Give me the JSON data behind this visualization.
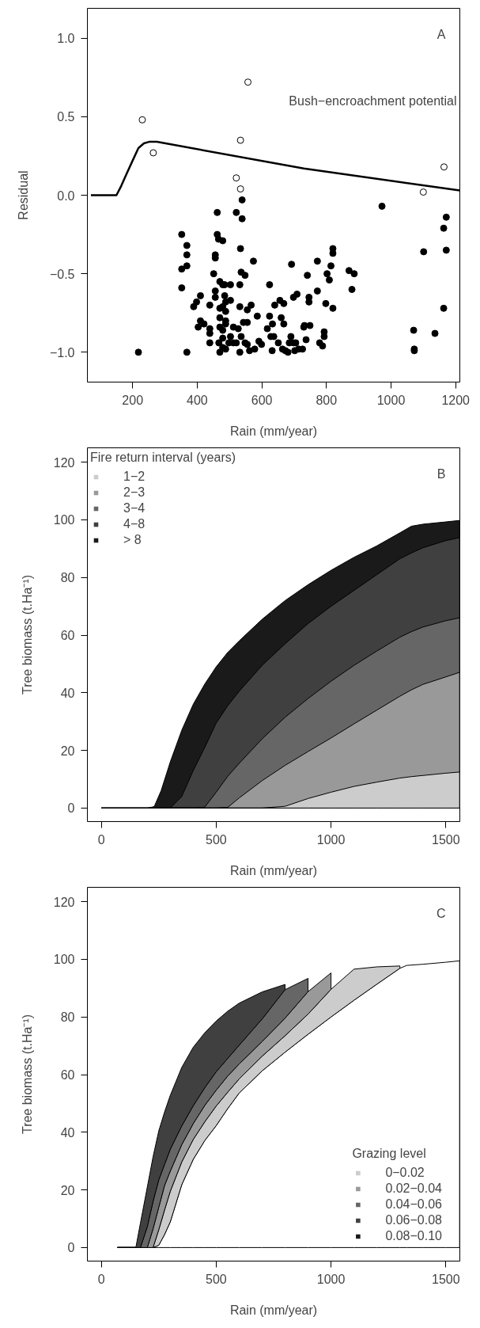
{
  "chart_data": [
    {
      "type": "scatter",
      "xlabel": "Rain (mm/year)",
      "ylabel": "Residual",
      "xlim": [
        60,
        1213
      ],
      "ylim": [
        -1.19,
        1.19
      ],
      "xticks": [
        200,
        400,
        600,
        800,
        1000,
        1200
      ],
      "yticks": [
        {
          "value": -1,
          "label": "−1.0"
        },
        {
          "value": -0.5,
          "label": "−0.5"
        },
        {
          "value": 0,
          "label": "0.0"
        },
        {
          "value": 0.5,
          "label": "0.5"
        },
        {
          "value": 1,
          "label": "1.0"
        }
      ],
      "marker": "circle",
      "annotations": [
        "A",
        "Bush−encroachment potential"
      ],
      "series": [
        {
          "type": "scatter",
          "color": "#000000",
          "x": [
            218,
            368,
            352,
            368,
            368,
            368,
            352,
            352,
            389,
            398,
            410,
            403,
            410,
            421,
            439,
            439,
            439,
            439,
            451,
            456,
            456,
            462,
            462,
            466,
            479,
            456,
            456,
            470,
            479,
            485,
            503,
            485,
            488,
            470,
            479,
            488,
            470,
            488,
            470,
            479,
            488,
            467,
            470,
            479,
            488,
            479,
            498,
            503,
            512,
            503,
            512,
            521,
            521,
            539,
            539,
            534,
            536,
            548,
            532,
            532,
            532,
            527,
            536,
            543,
            555,
            555,
            567,
            574,
            586,
            548,
            555,
            562,
            578,
            591,
            599,
            617,
            624,
            624,
            628,
            633,
            637,
            632,
            640,
            656,
            660,
            668,
            668,
            651,
            664,
            673,
            681,
            685,
            690,
            692,
            698,
            709,
            698,
            705,
            714,
            702,
            726,
            730,
            732,
            737,
            741,
            746,
            746,
            749,
            772,
            772,
            779,
            788,
            793,
            793,
            798,
            802,
            809,
            814,
            820,
            820,
            820,
            870,
            886,
            879,
            972,
            1070,
            1072,
            1072,
            1101,
            1136,
            1163,
            1171,
            1171,
            1163
          ],
          "values": [
            -1.0,
            -1.0,
            -0.25,
            -0.32,
            -0.38,
            -0.45,
            -0.47,
            -0.59,
            -0.71,
            -0.68,
            -0.64,
            -0.84,
            -0.8,
            -0.82,
            -0.7,
            -0.85,
            -0.88,
            -0.94,
            -0.5,
            -0.38,
            -0.4,
            -0.11,
            -0.25,
            -0.28,
            -0.29,
            -0.61,
            -0.65,
            -0.55,
            -0.57,
            -0.57,
            -0.57,
            -0.64,
            -0.68,
            -0.72,
            -0.71,
            -0.74,
            -0.78,
            -0.8,
            -0.84,
            -0.86,
            -0.82,
            -0.94,
            -1.0,
            -0.97,
            -0.98,
            -0.91,
            -0.94,
            -0.9,
            -0.84,
            -0.67,
            -0.94,
            -0.94,
            -0.11,
            -0.15,
            -0.03,
            -0.34,
            -0.49,
            -0.51,
            -0.57,
            -0.71,
            -1.0,
            -0.85,
            -0.9,
            -0.81,
            -0.81,
            -0.73,
            -0.7,
            -0.42,
            -0.77,
            -0.94,
            -0.95,
            -0.99,
            -0.98,
            -0.93,
            -0.95,
            -0.85,
            -0.57,
            -0.77,
            -0.9,
            -0.82,
            -0.9,
            -0.99,
            -0.7,
            -0.67,
            -0.78,
            -0.69,
            -0.82,
            -0.94,
            -0.98,
            -0.99,
            -1.0,
            -0.94,
            -0.9,
            -0.44,
            -0.65,
            -0.63,
            -0.94,
            -0.94,
            -0.98,
            -0.99,
            -0.98,
            -0.84,
            -0.83,
            -0.92,
            -0.51,
            -0.65,
            -0.68,
            -0.83,
            -0.42,
            -0.61,
            -0.94,
            -0.96,
            -0.9,
            -0.87,
            -0.69,
            -0.5,
            -0.54,
            -0.45,
            -0.34,
            -0.37,
            -0.72,
            -0.48,
            -0.5,
            -0.6,
            -0.07,
            -0.86,
            -0.98,
            -0.99,
            -0.36,
            -0.88,
            -0.21,
            -0.14,
            -0.35,
            -0.72
          ]
        },
        {
          "type": "scatter",
          "color": "#ffffff",
          "x": [
            230,
            264,
            557,
            534,
            521,
            534,
            1100,
            1164
          ],
          "values": [
            0.48,
            0.27,
            0.72,
            0.35,
            0.11,
            0.04,
            0.02,
            0.18
          ]
        },
        {
          "type": "line",
          "marker": "none",
          "color": "#000000",
          "x": [
            71,
            150,
            165,
            180,
            200,
            218,
            235,
            251,
            275,
            730,
            1213
          ],
          "values": [
            0,
            0,
            0.06,
            0.13,
            0.22,
            0.3,
            0.33,
            0.34,
            0.34,
            0.17,
            0.03
          ]
        }
      ]
    },
    {
      "type": "area",
      "xlabel": "Rain (mm/year)",
      "ylabel": "Tree biomass (t.Ha⁻¹)",
      "xlim": [
        -61,
        1561
      ],
      "ylim": [
        -4.7,
        125
      ],
      "xticks": [
        0,
        500,
        1000,
        1500
      ],
      "yticks": [
        0,
        20,
        40,
        60,
        80,
        100,
        120
      ],
      "legend": "top left",
      "legend_title": "Fire return interval (years)",
      "annotations": [
        "B"
      ],
      "x": [
        0,
        70,
        200,
        230,
        260,
        300,
        350,
        400,
        450,
        500,
        550,
        600,
        700,
        800,
        900,
        1000,
        1100,
        1200,
        1300,
        1350,
        1400,
        1500,
        1560
      ],
      "series": [
        {
          "name": "1−2",
          "color": "#cccccc",
          "values": [
            0,
            0,
            0,
            0,
            0,
            0,
            0,
            0,
            0,
            0,
            0,
            0,
            0,
            0.6,
            3.3,
            5.5,
            7.5,
            9,
            10.4,
            10.9,
            11.3,
            12.1,
            12.5
          ]
        },
        {
          "name": "2−3",
          "color": "#999999",
          "values": [
            0,
            0,
            0,
            0,
            0,
            0,
            0,
            0,
            0,
            0,
            0.2,
            3.5,
            9.5,
            14.8,
            19.6,
            24.3,
            29.2,
            34,
            38.8,
            41,
            42.9,
            45.5,
            47.1
          ]
        },
        {
          "name": "3−4",
          "color": "#666666",
          "values": [
            0,
            0,
            0,
            0,
            0,
            0,
            0,
            0,
            0.3,
            5.5,
            11,
            15.5,
            24,
            31.5,
            38,
            44,
            49.5,
            54.5,
            59.3,
            61.2,
            62.8,
            65,
            66
          ]
        },
        {
          "name": "4−8",
          "color": "#404040",
          "values": [
            0,
            0,
            0,
            0,
            0,
            0,
            4,
            13,
            21,
            29.5,
            35.5,
            40.5,
            49.5,
            57,
            64,
            70,
            75.5,
            81,
            86.5,
            88.5,
            90.3,
            92.8,
            93.8
          ]
        },
        {
          "name": "> 8",
          "color": "#1a1a1a",
          "values": [
            0,
            0,
            0,
            0.5,
            6,
            16,
            27,
            36,
            43,
            49,
            54,
            58,
            65.5,
            72,
            77.5,
            82.5,
            87,
            91,
            95.5,
            97.8,
            98.5,
            99.3,
            99.8
          ]
        }
      ]
    },
    {
      "type": "area",
      "xlabel": "Rain (mm/year)",
      "ylabel": "Tree biomass (t.Ha⁻¹)",
      "xlim": [
        -61,
        1561
      ],
      "ylim": [
        -4.7,
        125
      ],
      "xticks": [
        0,
        500,
        1000,
        1500
      ],
      "yticks": [
        0,
        20,
        40,
        60,
        80,
        100,
        120
      ],
      "legend": "bottom right",
      "legend_title": "Grazing level",
      "stacked": true,
      "annotations": [
        "C"
      ],
      "x": [
        70,
        150,
        170,
        200,
        225,
        250,
        275,
        300,
        350,
        400,
        450,
        500,
        550,
        600,
        700,
        800,
        900,
        1000,
        1100,
        1200,
        1300,
        1330,
        1400,
        1500,
        1560
      ],
      "series": [
        {
          "color": "#ffffff",
          "values": [
            0,
            0,
            0,
            0,
            0,
            0.8,
            4.5,
            8.9,
            21.8,
            30.6,
            37.1,
            42.3,
            48.2,
            53.6,
            61.3,
            67.8,
            74,
            80,
            85.8,
            91.4,
            96.9,
            97.9,
            98.3,
            99,
            99.5
          ]
        },
        {
          "name": "0−0.02",
          "color": "#cccccc",
          "values": [
            0,
            0,
            0,
            0,
            0,
            5.4,
            8.5,
            10.6,
            7.9,
            6.9,
            6.5,
            6.8,
            5.7,
            4.9,
            5.1,
            5.7,
            7,
            9.6,
            10.8,
            6,
            0.8,
            null,
            null,
            null,
            null
          ]
        },
        {
          "name": "0.02−0.04",
          "color": "#999999",
          "values": [
            0,
            0,
            0,
            0,
            6.5,
            7.8,
            8.5,
            7,
            6,
            5.5,
            5.7,
            5.5,
            5.6,
            5.2,
            5.1,
            6.1,
            7.8,
            5.7,
            null,
            null,
            null,
            null,
            null,
            null,
            null
          ]
        },
        {
          "name": "0.04−0.06",
          "color": "#666666",
          "values": [
            0,
            0,
            0,
            7.2,
            9.5,
            9.5,
            7.3,
            7.6,
            6.5,
            6.2,
            6.1,
            6.4,
            6.1,
            6.5,
            7.8,
            9.9,
            4.6,
            null,
            null,
            null,
            null,
            null,
            null,
            null,
            null
          ]
        },
        {
          "name": "0.06−0.08",
          "color": "#404040",
          "values": [
            0,
            0,
            8.5,
            13.8,
            15.5,
            17,
            18.2,
            18.7,
            20.3,
            20.3,
            19.1,
            17.6,
            16.4,
            14.6,
            9.4,
            1.8,
            null,
            null,
            null,
            null,
            null,
            null,
            null,
            null,
            null
          ]
        },
        {
          "name": "0.08−0.10",
          "color": "#1a1a1a",
          "values": [
            null,
            null,
            null,
            null,
            null,
            null,
            null,
            null,
            null,
            null,
            null,
            null,
            null,
            null,
            null,
            null,
            null,
            null,
            null,
            null,
            null,
            null,
            null,
            null,
            null
          ]
        }
      ]
    }
  ]
}
